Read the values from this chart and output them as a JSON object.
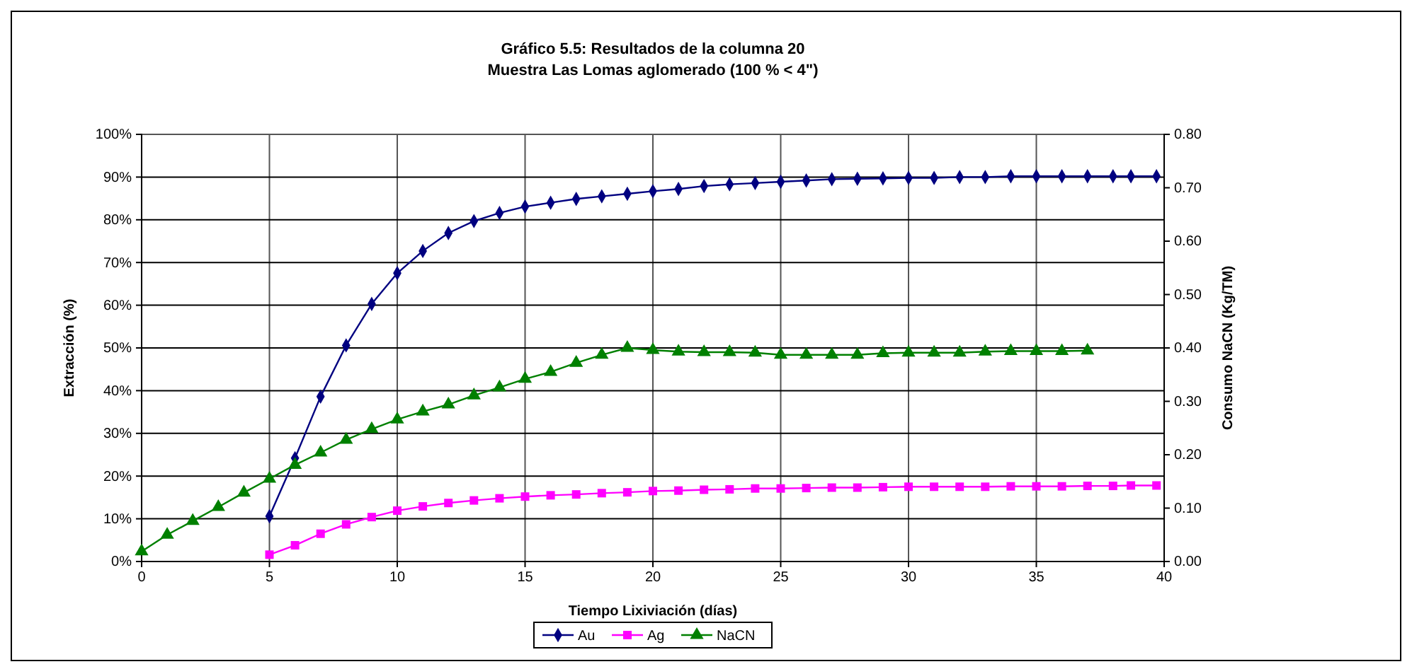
{
  "chart_data": {
    "type": "line",
    "title": "Gráfico 5.5: Resultados de la columna 20",
    "subtitle": "Muestra Las Lomas aglomerado (100 % < 4\")",
    "xlabel": "Tiempo Lixiviación (días)",
    "ylabel": "Extracción (%)",
    "y2label": "Consumo NaCN (Kg/TM)",
    "xlim": [
      0,
      40
    ],
    "xticks": [
      0,
      5,
      10,
      15,
      20,
      25,
      30,
      35,
      40
    ],
    "ylim": [
      0,
      100
    ],
    "yticks": [
      {
        "value": 0,
        "label": "0%"
      },
      {
        "value": 10,
        "label": "10%"
      },
      {
        "value": 20,
        "label": "20%"
      },
      {
        "value": 30,
        "label": "30%"
      },
      {
        "value": 40,
        "label": "40%"
      },
      {
        "value": 50,
        "label": "50%"
      },
      {
        "value": 60,
        "label": "60%"
      },
      {
        "value": 70,
        "label": "70%"
      },
      {
        "value": 80,
        "label": "80%"
      },
      {
        "value": 90,
        "label": "90%"
      },
      {
        "value": 100,
        "label": "100%"
      }
    ],
    "y2lim": [
      0,
      0.8
    ],
    "y2ticks": [
      {
        "value": 0,
        "label": "0.00"
      },
      {
        "value": 0.1,
        "label": "0.10"
      },
      {
        "value": 0.2,
        "label": "0.20"
      },
      {
        "value": 0.3,
        "label": "0.30"
      },
      {
        "value": 0.4,
        "label": "0.40"
      },
      {
        "value": 0.5,
        "label": "0.50"
      },
      {
        "value": 0.6,
        "label": "0.60"
      },
      {
        "value": 0.7,
        "label": "0.70"
      },
      {
        "value": 0.8,
        "label": "0.80"
      }
    ],
    "grid": true,
    "legend": "bottom",
    "series": [
      {
        "name": "Au",
        "color": "#000080",
        "marker": "diamond",
        "x": [
          5,
          6,
          7,
          8,
          9,
          10,
          11,
          12,
          13,
          14,
          15,
          16,
          17,
          18,
          19,
          20,
          21,
          22,
          23,
          24,
          25,
          26,
          27,
          28,
          29,
          30,
          31,
          32,
          33,
          34,
          35,
          36,
          37,
          38,
          38.7,
          39.7
        ],
        "values": [
          10.6,
          24.2,
          38.6,
          50.6,
          60.3,
          67.5,
          72.7,
          76.9,
          79.7,
          81.6,
          83.1,
          84.0,
          84.9,
          85.5,
          86.1,
          86.7,
          87.2,
          87.9,
          88.3,
          88.6,
          88.9,
          89.2,
          89.5,
          89.6,
          89.7,
          89.8,
          89.8,
          90.0,
          90.0,
          90.2,
          90.2,
          90.2,
          90.2,
          90.2,
          90.2,
          90.2
        ]
      },
      {
        "name": "Ag",
        "color": "#ff00ff",
        "marker": "square",
        "x": [
          5,
          6,
          7,
          8,
          9,
          10,
          11,
          12,
          13,
          14,
          15,
          16,
          17,
          18,
          19,
          20,
          21,
          22,
          23,
          24,
          25,
          26,
          27,
          28,
          29,
          30,
          31,
          32,
          33,
          34,
          35,
          36,
          37,
          38,
          38.7,
          39.7
        ],
        "values": [
          1.6,
          3.8,
          6.5,
          8.7,
          10.4,
          11.9,
          12.9,
          13.7,
          14.3,
          14.8,
          15.2,
          15.5,
          15.7,
          16.0,
          16.2,
          16.5,
          16.6,
          16.8,
          16.9,
          17.1,
          17.1,
          17.2,
          17.3,
          17.3,
          17.4,
          17.5,
          17.5,
          17.5,
          17.5,
          17.6,
          17.6,
          17.6,
          17.7,
          17.7,
          17.8,
          17.8
        ]
      },
      {
        "name": "NaCN",
        "color": "#008000",
        "marker": "triangle",
        "axis": "y2",
        "x": [
          0,
          1,
          2,
          3,
          4,
          5,
          6,
          7,
          8,
          9,
          10,
          11,
          12,
          13,
          14,
          15,
          16,
          17,
          18,
          19,
          20,
          21,
          22,
          23,
          24,
          25,
          26,
          27,
          28,
          29,
          30,
          31,
          32,
          33,
          34,
          35,
          36,
          37
        ],
        "values": [
          0.019,
          0.05,
          0.076,
          0.102,
          0.129,
          0.155,
          0.181,
          0.204,
          0.228,
          0.248,
          0.266,
          0.281,
          0.294,
          0.311,
          0.326,
          0.342,
          0.355,
          0.372,
          0.387,
          0.4,
          0.396,
          0.393,
          0.392,
          0.392,
          0.391,
          0.387,
          0.387,
          0.387,
          0.387,
          0.39,
          0.391,
          0.391,
          0.391,
          0.393,
          0.394,
          0.394,
          0.394,
          0.395
        ]
      }
    ]
  }
}
